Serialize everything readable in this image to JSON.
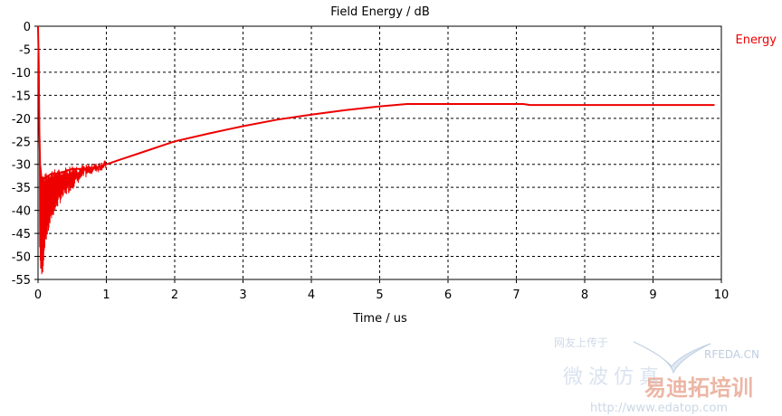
{
  "chart_data": {
    "type": "line",
    "title": "Field Energy / dB",
    "xlabel": "Time / us",
    "ylabel": "",
    "xlim": [
      0,
      10
    ],
    "ylim": [
      -55,
      0
    ],
    "xticks": [
      "0",
      "1",
      "2",
      "3",
      "4",
      "5",
      "6",
      "7",
      "8",
      "9",
      "10"
    ],
    "yticks": [
      "0",
      "-5",
      "-10",
      "-15",
      "-20",
      "-25",
      "-30",
      "-35",
      "-40",
      "-45",
      "-50",
      "-55"
    ],
    "grid": true,
    "grid_style": "dashed",
    "legend_position": "top-right",
    "series": [
      {
        "name": "Energy",
        "color": "#ee0000",
        "x": [
          0,
          0.01,
          0.02,
          0.03,
          0.05,
          0.1,
          0.2,
          0.3,
          0.5,
          0.7,
          0.9,
          1.0,
          1.2,
          1.5,
          2.0,
          2.5,
          3.0,
          3.5,
          4.0,
          4.5,
          5.0,
          5.4,
          6.0,
          6.5,
          7.0,
          7.1,
          7.2,
          8.0,
          9.0,
          9.9
        ],
        "y": [
          0,
          -8,
          -23,
          -30,
          -33,
          -33,
          -32,
          -32,
          -31,
          -31,
          -30.5,
          -30,
          -29,
          -27.5,
          -25,
          -23.3,
          -21.7,
          -20.3,
          -19.2,
          -18.2,
          -17.4,
          -16.9,
          -16.9,
          -16.9,
          -16.9,
          -16.9,
          -17.1,
          -17.1,
          -17.1,
          -17.1
        ],
        "envelope_lower": {
          "x": [
            0.02,
            0.04,
            0.06,
            0.08,
            0.1,
            0.15,
            0.2,
            0.3,
            0.4,
            0.5,
            0.6,
            0.7,
            0.8,
            0.9,
            1.0
          ],
          "y": [
            -48,
            -54,
            -55,
            -52,
            -48,
            -45,
            -42,
            -39,
            -37,
            -35.5,
            -34,
            -33,
            -32,
            -31.5,
            -31
          ]
        }
      }
    ]
  },
  "watermark": {
    "line1": "网友上传于",
    "line2": "微波仿真",
    "brand1": "RFEDA.CN",
    "brand2": "易迪拓培训",
    "url": "http://www.edatop.com"
  }
}
